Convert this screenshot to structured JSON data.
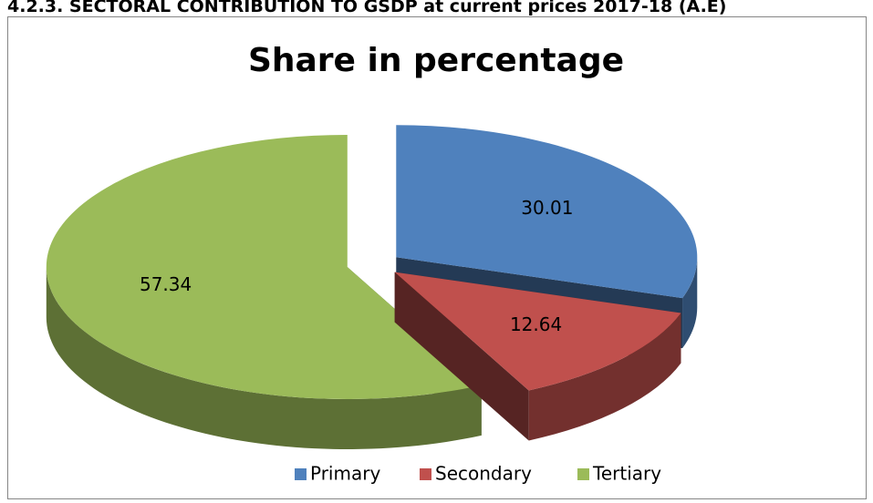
{
  "heading": "4.2.3. SECTORAL CONTRIBUTION TO GSDP at current prices 2017-18 (A.E)",
  "chart_data": {
    "type": "pie",
    "title": "Share in percentage",
    "categories": [
      "Primary",
      "Secondary",
      "Tertiary"
    ],
    "values": [
      30.01,
      12.64,
      57.34
    ],
    "colors": [
      "#4f81bd",
      "#c0504d",
      "#9bbb59"
    ],
    "legend": "bottom"
  }
}
